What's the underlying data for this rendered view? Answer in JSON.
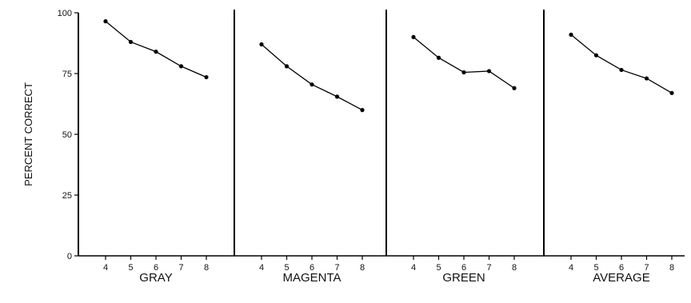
{
  "chart_data": {
    "type": "line",
    "ylabel": "PERCENT CORRECT",
    "ylim": [
      0,
      100
    ],
    "yticks": [
      "0",
      "25",
      "50",
      "75",
      "100"
    ],
    "x": [
      "4",
      "5",
      "6",
      "7",
      "8"
    ],
    "grid": false,
    "panels": [
      {
        "label": "GRAY",
        "values": [
          96.5,
          88.0,
          84.0,
          78.0,
          73.5
        ]
      },
      {
        "label": "MAGENTA",
        "values": [
          87.0,
          78.0,
          70.5,
          65.5,
          60.0
        ]
      },
      {
        "label": "GREEN",
        "values": [
          90.0,
          81.5,
          75.5,
          76.0,
          69.0
        ]
      },
      {
        "label": "AVERAGE",
        "values": [
          91.0,
          82.5,
          76.5,
          73.0,
          67.0
        ]
      }
    ]
  }
}
